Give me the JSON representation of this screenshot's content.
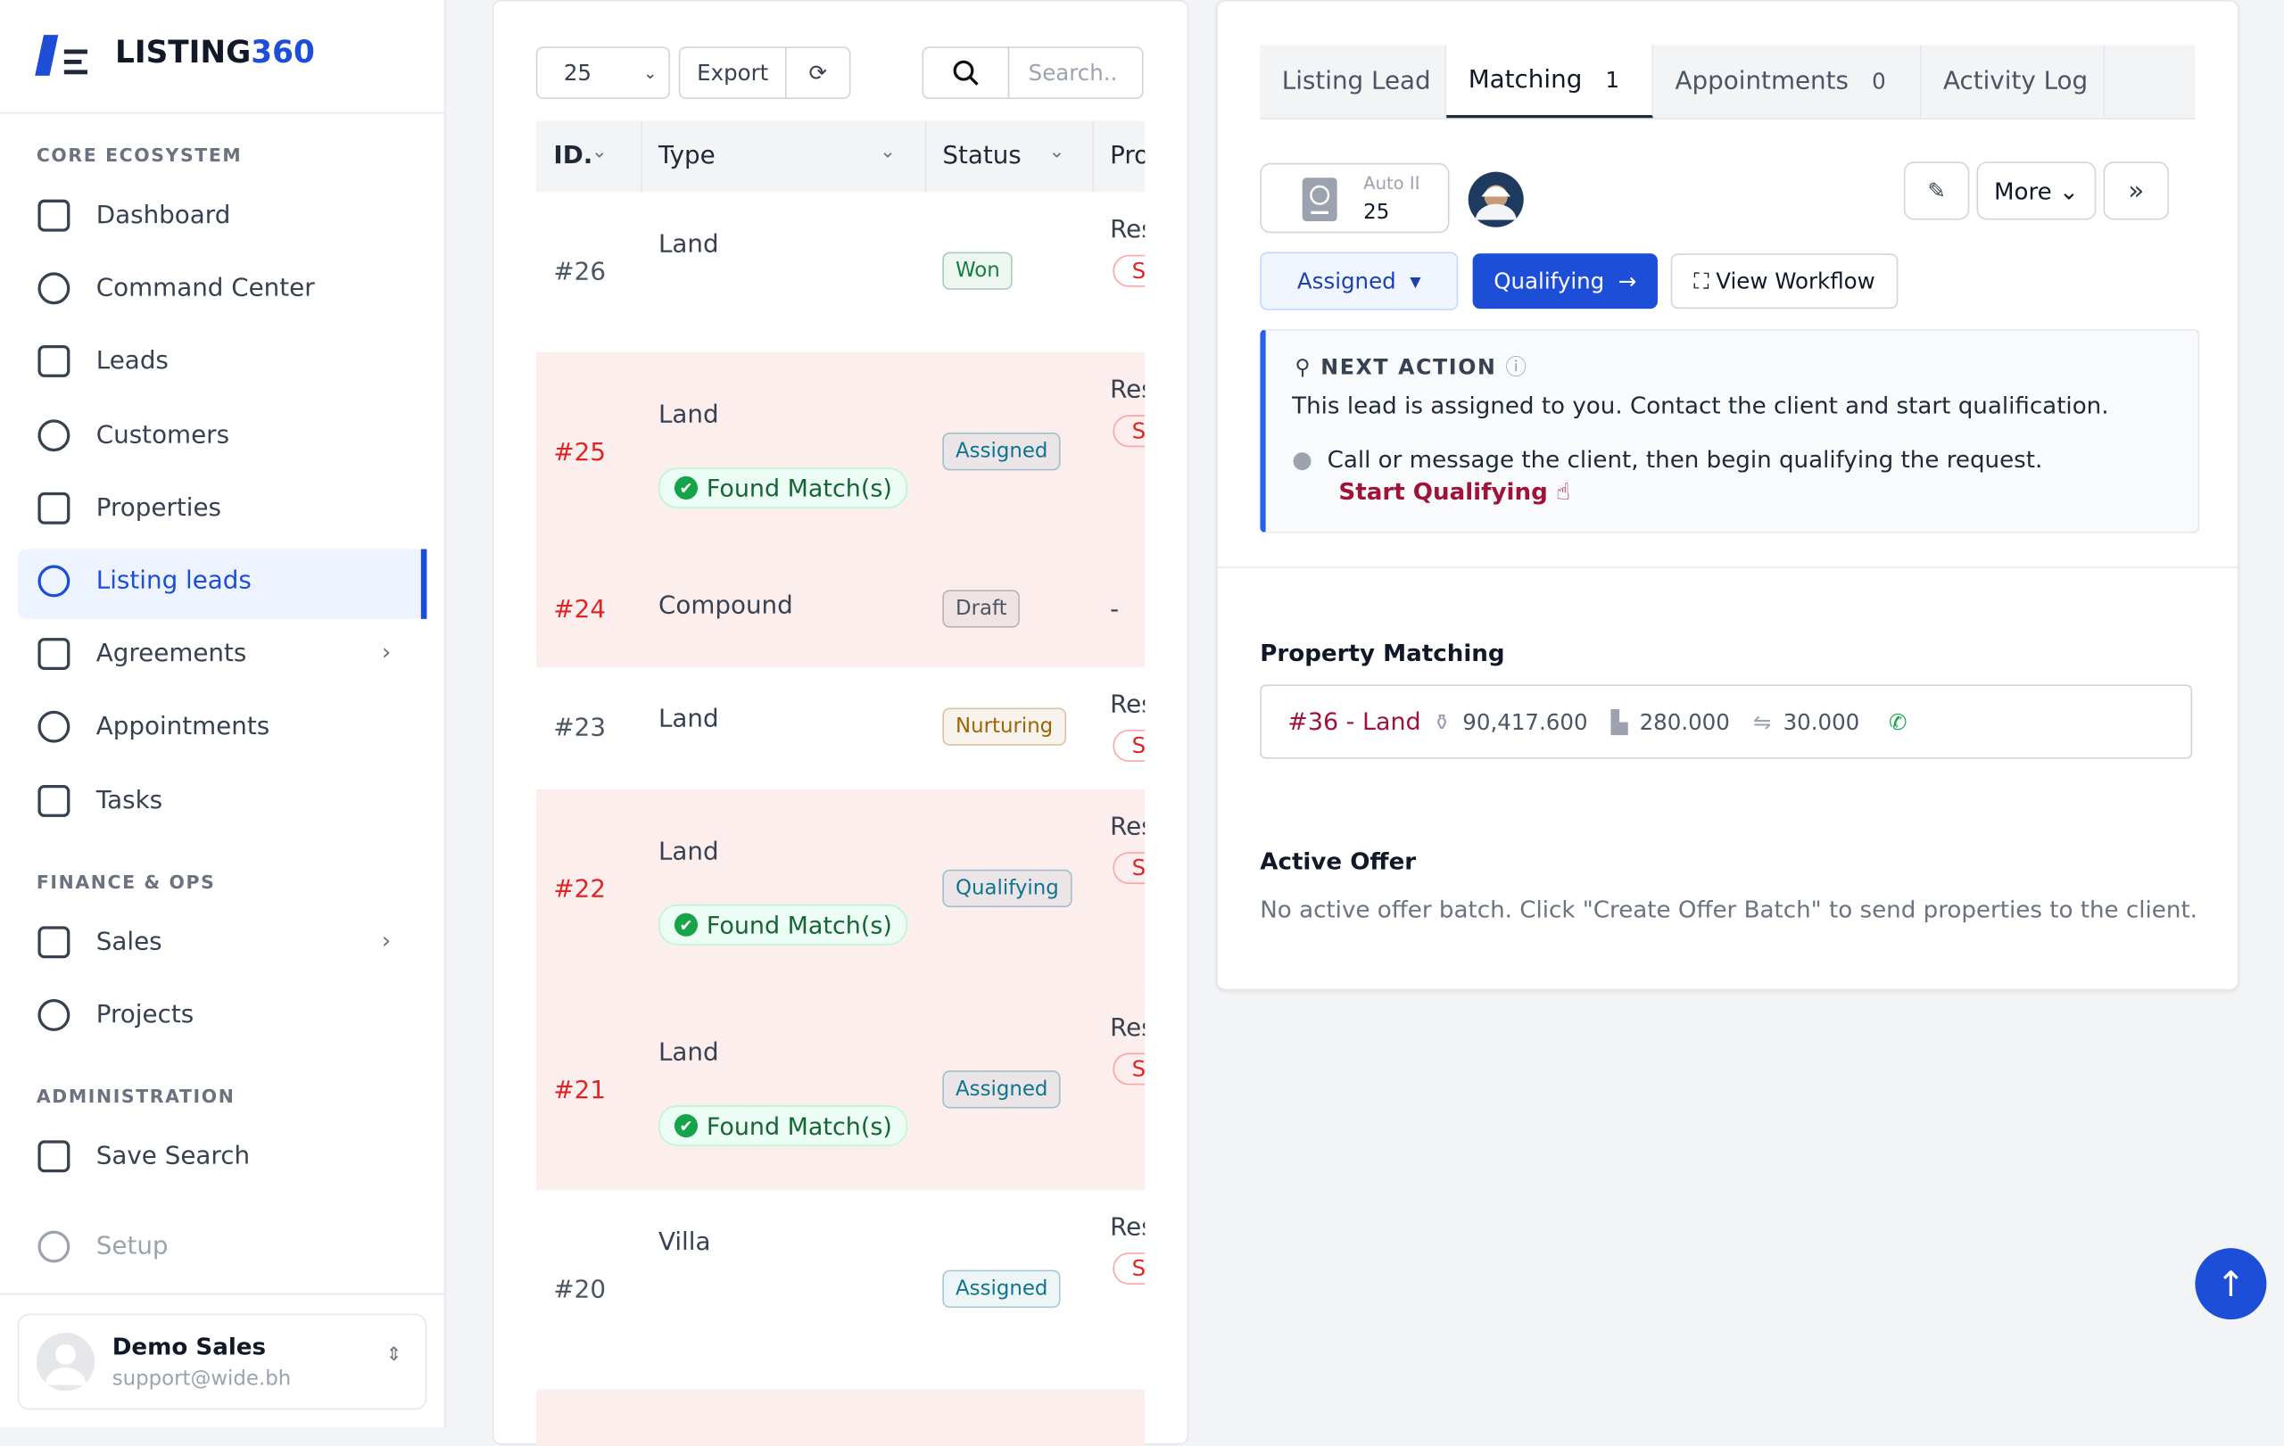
{
  "brand": {
    "name": "LISTING",
    "suffix": "360"
  },
  "nav": [
    {
      "title": "CORE ECOSYSTEM",
      "items": [
        {
          "label": "Dashboard"
        },
        {
          "label": "Command Center"
        },
        {
          "label": "Leads"
        },
        {
          "label": "Customers"
        },
        {
          "label": "Properties"
        },
        {
          "label": "Listing leads",
          "active": true
        },
        {
          "label": "Agreements",
          "submenu": true
        },
        {
          "label": "Appointments"
        },
        {
          "label": "Tasks"
        }
      ]
    },
    {
      "title": "FINANCE & OPS",
      "items": [
        {
          "label": "Sales",
          "submenu": true
        },
        {
          "label": "Projects"
        }
      ]
    },
    {
      "title": "ADMINISTRATION",
      "items": [
        {
          "label": "Save Search"
        },
        {
          "label": "Setup"
        }
      ]
    }
  ],
  "user": {
    "name": "Demo Sales",
    "email": "support@wide.bh"
  },
  "table": {
    "page_size": "25",
    "export": "Export",
    "search_placeholder": "Search..",
    "columns": [
      "ID.",
      "Type",
      "Status",
      "Pro"
    ],
    "rows": [
      {
        "id": "#26",
        "type": "Land",
        "status": "Won",
        "badge_color": "#15803d",
        "prop": "Res",
        "tag": "S",
        "highlight": false
      },
      {
        "id": "#25",
        "type": "Land",
        "match": "Found Match(s)",
        "status": "Assigned",
        "badge_color": "#0e7490",
        "prop": "Res",
        "tag": "S",
        "highlight": true
      },
      {
        "id": "#24",
        "type": "Compound",
        "status": "Draft",
        "badge_color": "#4b5563",
        "prop": "-",
        "highlight": true
      },
      {
        "id": "#23",
        "type": "Land",
        "status": "Nurturing",
        "badge_color": "#a16207",
        "prop": "Res",
        "tag": "S",
        "highlight": false
      },
      {
        "id": "#22",
        "type": "Land",
        "match": "Found Match(s)",
        "status": "Qualifying",
        "badge_color": "#0e7490",
        "prop": "Res",
        "tag": "S",
        "highlight": true
      },
      {
        "id": "#21",
        "type": "Land",
        "match": "Found Match(s)",
        "status": "Assigned",
        "badge_color": "#0e7490",
        "prop": "Res",
        "tag": "S",
        "highlight": true
      },
      {
        "id": "#20",
        "type": "Villa",
        "status": "Assigned",
        "badge_color": "#0e7490",
        "prop": "Res",
        "tag": "S",
        "highlight": false
      }
    ]
  },
  "detail": {
    "tabs": [
      {
        "label": "Listing Lead"
      },
      {
        "label": "Matching",
        "count": 1,
        "active": true
      },
      {
        "label": "Appointments",
        "count": 0
      },
      {
        "label": "Activity Log"
      }
    ],
    "auto_id": {
      "label": "Auto ID",
      "value": 25
    },
    "more": "More",
    "status_button": "Assigned",
    "stage_button": "Qualifying",
    "workflow_button": "View Workflow",
    "next_action": {
      "title": "NEXT ACTION",
      "message": "This lead is assigned to you. Contact the client and start qualification.",
      "hint": "Call or message the client, then begin qualifying the request.",
      "link": "Start Qualifying"
    },
    "matching": {
      "title": "Property Matching",
      "item": "#36 - Land",
      "price": "90,417.600",
      "area": "280.000",
      "size": "30.000"
    },
    "offer": {
      "title": "Active Offer",
      "text": "No active offer batch. Click \"Create Offer Batch\" to send properties to the client."
    }
  }
}
